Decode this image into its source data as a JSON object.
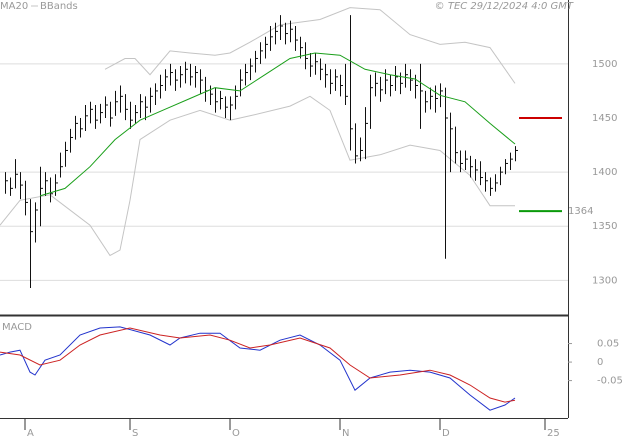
{
  "chart_data": [
    {
      "type": "hlc",
      "credit": "© TEC 29/12/2024 4:0 GMT",
      "xlim": [
        -5,
        108.6
      ],
      "ylim": [
        1268,
        1559
      ],
      "yticks": [
        1300,
        1350,
        1400,
        1500
      ],
      "grid": true,
      "bar_color": "#111111",
      "x": [
        -4,
        -3,
        -2,
        -1,
        0,
        1,
        2,
        3,
        4,
        5,
        6,
        7,
        8,
        9,
        10,
        11,
        12,
        13,
        14,
        15,
        16,
        17,
        18,
        19,
        20,
        21,
        22,
        23,
        24,
        25,
        26,
        27,
        28,
        29,
        30,
        31,
        32,
        33,
        34,
        35,
        36,
        37,
        38,
        39,
        40,
        41,
        42,
        43,
        44,
        45,
        46,
        47,
        48,
        49,
        50,
        51,
        52,
        53,
        54,
        55,
        56,
        57,
        58,
        59,
        60,
        61,
        62,
        63,
        64,
        65,
        66,
        67,
        68,
        69,
        70,
        71,
        72,
        73,
        74,
        75,
        76,
        77,
        78,
        79,
        80,
        81,
        82,
        83,
        84,
        85,
        86,
        87,
        88,
        89,
        90,
        91,
        92,
        93,
        94,
        95,
        96,
        97,
        98
      ],
      "high": [
        1400,
        1395,
        1412,
        1400,
        1392,
        1375,
        1372,
        1405,
        1400,
        1395,
        1398,
        1418,
        1428,
        1440,
        1452,
        1450,
        1462,
        1465,
        1462,
        1463,
        1470,
        1465,
        1475,
        1480,
        1472,
        1465,
        1462,
        1472,
        1470,
        1478,
        1482,
        1490,
        1495,
        1500,
        1495,
        1498,
        1502,
        1500,
        1498,
        1495,
        1488,
        1480,
        1478,
        1475,
        1470,
        1470,
        1480,
        1495,
        1500,
        1505,
        1512,
        1520,
        1525,
        1535,
        1538,
        1545,
        1538,
        1540,
        1535,
        1525,
        1520,
        1510,
        1510,
        1505,
        1500,
        1495,
        1495,
        1490,
        1500,
        1545,
        1445,
        1432,
        1460,
        1490,
        1492,
        1488,
        1495,
        1490,
        1498,
        1492,
        1500,
        1495,
        1490,
        1500,
        1475,
        1478,
        1480,
        1482,
        1478,
        1455,
        1442,
        1420,
        1420,
        1415,
        1412,
        1410,
        1400,
        1395,
        1398,
        1405,
        1412,
        1418,
        1424
      ],
      "low": [
        1380,
        1378,
        1385,
        1375,
        1360,
        1293,
        1335,
        1350,
        1378,
        1372,
        1378,
        1395,
        1405,
        1418,
        1430,
        1432,
        1438,
        1445,
        1440,
        1445,
        1450,
        1442,
        1452,
        1455,
        1448,
        1440,
        1445,
        1450,
        1448,
        1455,
        1462,
        1468,
        1475,
        1480,
        1475,
        1478,
        1482,
        1480,
        1478,
        1472,
        1465,
        1462,
        1455,
        1458,
        1450,
        1448,
        1458,
        1470,
        1480,
        1485,
        1492,
        1500,
        1505,
        1512,
        1518,
        1522,
        1518,
        1520,
        1512,
        1505,
        1495,
        1488,
        1490,
        1485,
        1478,
        1472,
        1475,
        1470,
        1462,
        1420,
        1408,
        1410,
        1412,
        1440,
        1470,
        1465,
        1472,
        1470,
        1475,
        1472,
        1478,
        1475,
        1468,
        1440,
        1455,
        1458,
        1455,
        1460,
        1320,
        1400,
        1408,
        1400,
        1402,
        1395,
        1392,
        1388,
        1382,
        1378,
        1382,
        1388,
        1398,
        1402,
        1410
      ],
      "close": [
        1392,
        1385,
        1398,
        1388,
        1372,
        1345,
        1365,
        1385,
        1392,
        1380,
        1390,
        1405,
        1420,
        1432,
        1445,
        1440,
        1452,
        1458,
        1448,
        1455,
        1462,
        1450,
        1465,
        1470,
        1458,
        1448,
        1455,
        1465,
        1460,
        1470,
        1475,
        1480,
        1488,
        1492,
        1485,
        1490,
        1495,
        1488,
        1492,
        1485,
        1475,
        1472,
        1465,
        1468,
        1460,
        1462,
        1470,
        1485,
        1492,
        1498,
        1505,
        1512,
        1518,
        1525,
        1530,
        1535,
        1528,
        1532,
        1522,
        1515,
        1505,
        1498,
        1502,
        1495,
        1490,
        1482,
        1488,
        1480,
        1470,
        1440,
        1415,
        1420,
        1445,
        1478,
        1482,
        1476,
        1485,
        1480,
        1488,
        1482,
        1490,
        1485,
        1480,
        1475,
        1465,
        1470,
        1468,
        1475,
        1450,
        1440,
        1418,
        1408,
        1412,
        1405,
        1402,
        1395,
        1392,
        1385,
        1390,
        1400,
        1408,
        1412,
        1420
      ],
      "ma": {
        "name": "MA20",
        "color": "#1a9f1a",
        "x": [
          3,
          8,
          13,
          18,
          23,
          28,
          33,
          38,
          43,
          48,
          53,
          58,
          63,
          68,
          73,
          78,
          83,
          88,
          93,
          98
        ],
        "values": [
          1378,
          1385,
          1405,
          1430,
          1448,
          1458,
          1468,
          1478,
          1475,
          1490,
          1505,
          1510,
          1508,
          1495,
          1490,
          1486,
          1471,
          1465,
          1445,
          1426
        ]
      },
      "bands": {
        "name": "BBands",
        "color": "#c4c4c4",
        "upper": {
          "x": [
            16,
            20,
            22,
            25,
            29,
            33,
            38,
            41,
            45,
            51,
            59,
            65,
            71,
            77,
            83,
            88,
            93,
            98
          ],
          "values": [
            1495,
            1505,
            1505,
            1490,
            1512,
            1510,
            1508,
            1510,
            1520,
            1536,
            1541,
            1552,
            1550,
            1527,
            1518,
            1520,
            1515,
            1482
          ]
        },
        "lower": {
          "x": [
            -5,
            -1,
            5,
            13,
            17,
            19,
            21,
            23,
            29,
            35,
            41,
            45,
            53,
            57,
            61,
            65,
            71,
            77,
            83,
            89,
            93,
            98
          ],
          "values": [
            1351,
            1374,
            1379,
            1351,
            1323,
            1328,
            1374,
            1430,
            1448,
            1457,
            1448,
            1452,
            1461,
            1470,
            1457,
            1411,
            1416,
            1425,
            1420,
            1397,
            1369,
            1369
          ]
        }
      },
      "levels": [
        {
          "value": 1450,
          "color": "#cc0000"
        },
        {
          "value": 1364,
          "color": "#0a9a0a"
        }
      ]
    },
    {
      "type": "line",
      "title": "MACD",
      "xlim": [
        -5,
        108.6
      ],
      "ylim": [
        -0.151,
        0.119
      ],
      "yticks": [
        {
          "value": 0.05,
          "label": "0.05"
        },
        0,
        {
          "value": -0.05,
          "label": "-0.05"
        }
      ],
      "xticks": [
        {
          "value": 0,
          "label": "A"
        },
        {
          "value": 21,
          "label": "S"
        },
        {
          "value": 41,
          "label": "O"
        },
        {
          "value": 63,
          "label": "N"
        },
        {
          "value": 83,
          "label": "D"
        },
        {
          "value": 104,
          "label": "25"
        }
      ],
      "series": [
        {
          "color": "#2233cc",
          "x": [
            -5,
            -3,
            -1,
            1,
            2,
            4,
            7,
            11,
            15,
            19,
            25,
            29,
            31,
            35,
            39,
            43,
            47,
            51,
            55,
            59,
            63,
            66,
            69,
            73,
            77,
            81,
            85,
            89,
            93,
            96,
            98
          ],
          "values": [
            0.019,
            0.027,
            0.032,
            -0.027,
            -0.035,
            0.005,
            0.019,
            0.073,
            0.092,
            0.095,
            0.073,
            0.046,
            0.065,
            0.078,
            0.078,
            0.038,
            0.032,
            0.059,
            0.073,
            0.046,
            0.005,
            -0.076,
            -0.043,
            -0.027,
            -0.022,
            -0.027,
            -0.043,
            -0.089,
            -0.13,
            -0.116,
            -0.097
          ]
        },
        {
          "color": "#cc2222",
          "x": [
            -5,
            -1,
            3,
            7,
            11,
            15,
            21,
            27,
            31,
            37,
            41,
            45,
            49,
            55,
            61,
            65,
            69,
            75,
            81,
            85,
            89,
            93,
            96,
            98
          ],
          "values": [
            0.027,
            0.019,
            -0.008,
            0.005,
            0.046,
            0.073,
            0.092,
            0.073,
            0.065,
            0.073,
            0.059,
            0.038,
            0.046,
            0.065,
            0.038,
            -0.008,
            -0.043,
            -0.035,
            -0.022,
            -0.035,
            -0.062,
            -0.097,
            -0.108,
            -0.103
          ]
        }
      ]
    }
  ]
}
